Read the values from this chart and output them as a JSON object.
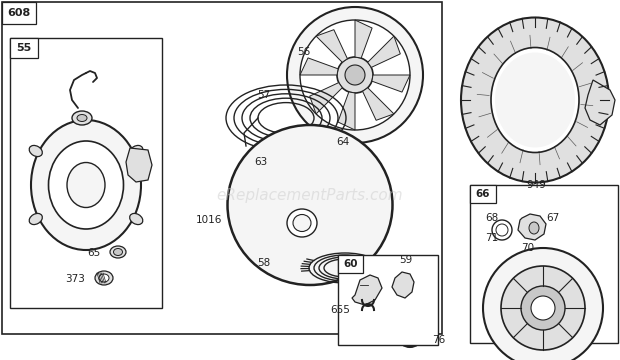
{
  "bg_color": "#ffffff",
  "watermark": "eReplacementParts.com",
  "watermark_color": "#cccccc",
  "watermark_fontsize": 11,
  "line_color": "#222222",
  "fill_light": "#f5f5f5",
  "fill_mid": "#e0e0e0",
  "fill_dark": "#c8c8c8"
}
